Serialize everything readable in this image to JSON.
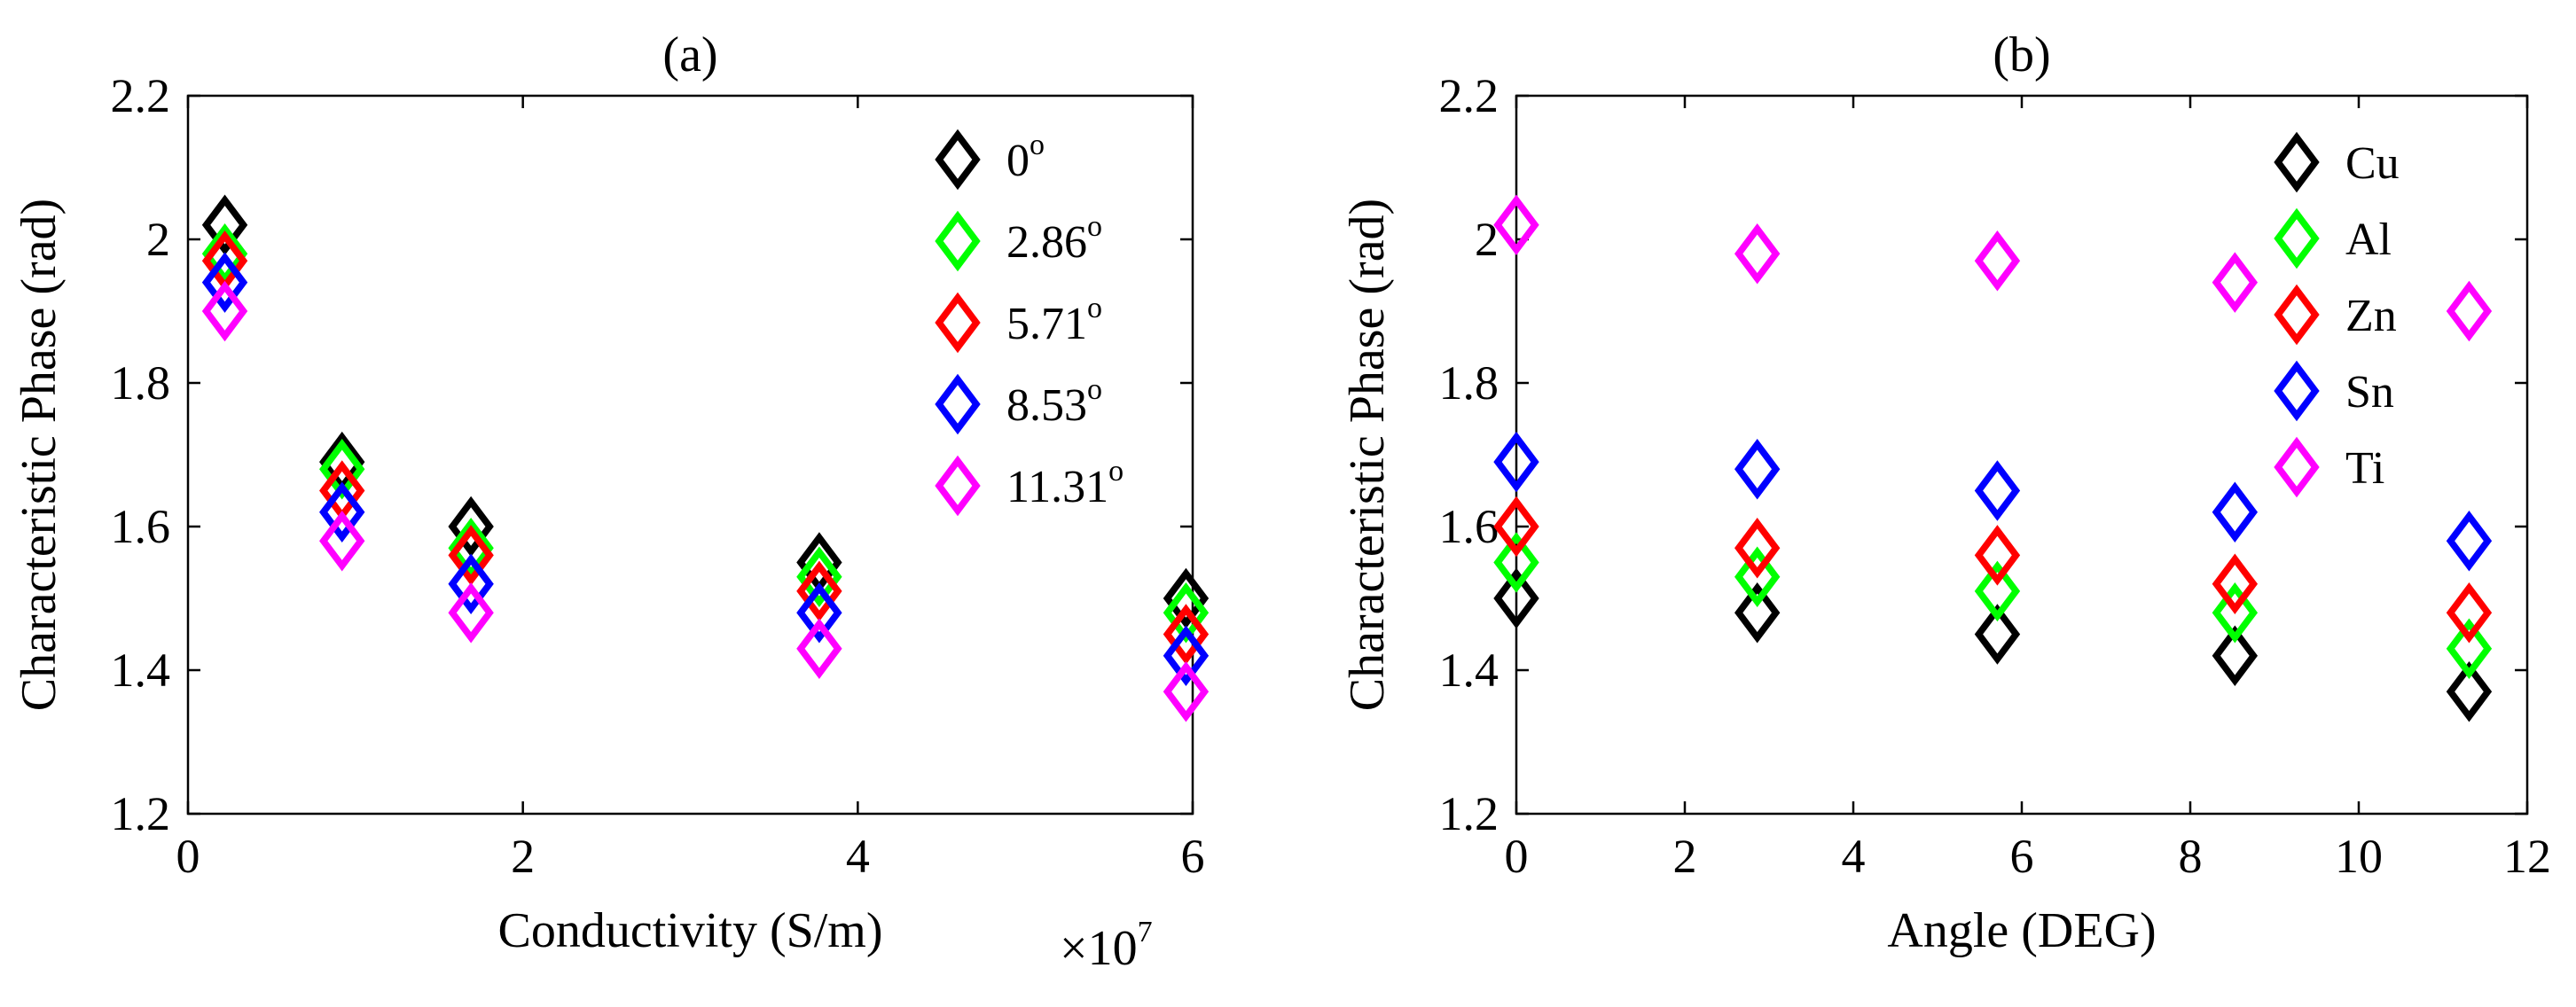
{
  "chart_data": [
    {
      "type": "scatter",
      "title": "(a)",
      "xlabel": "Conductivity (S/m)",
      "ylabel": "Characteristic Phase (rad)",
      "x_multiplier_label": {
        "base": "×10",
        "exponent": "7"
      },
      "xlim": [
        0,
        6
      ],
      "ylim": [
        1.2,
        2.2
      ],
      "xticks": [
        0,
        2,
        4,
        6
      ],
      "xtick_labels": [
        "0",
        "2",
        "4",
        "6"
      ],
      "yticks": [
        1.2,
        1.4,
        1.6,
        1.8,
        2.0,
        2.2
      ],
      "ytick_labels": [
        "1.2",
        "1.4",
        "1.6",
        "1.8",
        "2",
        "2.2"
      ],
      "legend_position": "top-right",
      "marker": "diamond",
      "x": [
        0.22,
        0.92,
        1.69,
        3.77,
        5.96
      ],
      "series": [
        {
          "name": "0",
          "label_main": "0",
          "label_sup": "o",
          "color": "#000000",
          "values": [
            2.02,
            1.69,
            1.6,
            1.55,
            1.5
          ]
        },
        {
          "name": "2.86",
          "label_main": "2.86",
          "label_sup": "o",
          "color": "#00ff00",
          "values": [
            1.98,
            1.68,
            1.57,
            1.53,
            1.48
          ]
        },
        {
          "name": "5.71",
          "label_main": "5.71",
          "label_sup": "o",
          "color": "#ff0000",
          "values": [
            1.97,
            1.65,
            1.56,
            1.51,
            1.45
          ]
        },
        {
          "name": "8.53",
          "label_main": "8.53",
          "label_sup": "o",
          "color": "#0000ff",
          "values": [
            1.94,
            1.62,
            1.52,
            1.48,
            1.42
          ]
        },
        {
          "name": "11.31",
          "label_main": "11.31",
          "label_sup": "o",
          "color": "#ff00ff",
          "values": [
            1.9,
            1.58,
            1.48,
            1.43,
            1.37
          ]
        }
      ]
    },
    {
      "type": "scatter",
      "title": "(b)",
      "xlabel": "Angle (DEG)",
      "ylabel": "Characteristic Phase (rad)",
      "xlim": [
        0,
        12
      ],
      "ylim": [
        1.2,
        2.2
      ],
      "xticks": [
        0,
        2,
        4,
        6,
        8,
        10,
        12
      ],
      "xtick_labels": [
        "0",
        "2",
        "4",
        "6",
        "8",
        "10",
        "12"
      ],
      "yticks": [
        1.2,
        1.4,
        1.6,
        1.8,
        2.0,
        2.2
      ],
      "ytick_labels": [
        "1.2",
        "1.4",
        "1.6",
        "1.8",
        "2",
        "2.2"
      ],
      "legend_position": "top-right",
      "marker": "diamond",
      "x": [
        0,
        2.86,
        5.71,
        8.53,
        11.31
      ],
      "series": [
        {
          "name": "Cu",
          "label_main": "Cu",
          "label_sup": "",
          "color": "#000000",
          "values": [
            1.5,
            1.48,
            1.45,
            1.42,
            1.37
          ]
        },
        {
          "name": "Al",
          "label_main": "Al",
          "label_sup": "",
          "color": "#00ff00",
          "values": [
            1.55,
            1.53,
            1.51,
            1.48,
            1.43
          ]
        },
        {
          "name": "Zn",
          "label_main": "Zn",
          "label_sup": "",
          "color": "#ff0000",
          "values": [
            1.6,
            1.57,
            1.56,
            1.52,
            1.48
          ]
        },
        {
          "name": "Sn",
          "label_main": "Sn",
          "label_sup": "",
          "color": "#0000ff",
          "values": [
            1.69,
            1.68,
            1.65,
            1.62,
            1.58
          ]
        },
        {
          "name": "Ti",
          "label_main": "Ti",
          "label_sup": "",
          "color": "#ff00ff",
          "values": [
            2.02,
            1.98,
            1.97,
            1.94,
            1.9
          ]
        }
      ]
    }
  ]
}
